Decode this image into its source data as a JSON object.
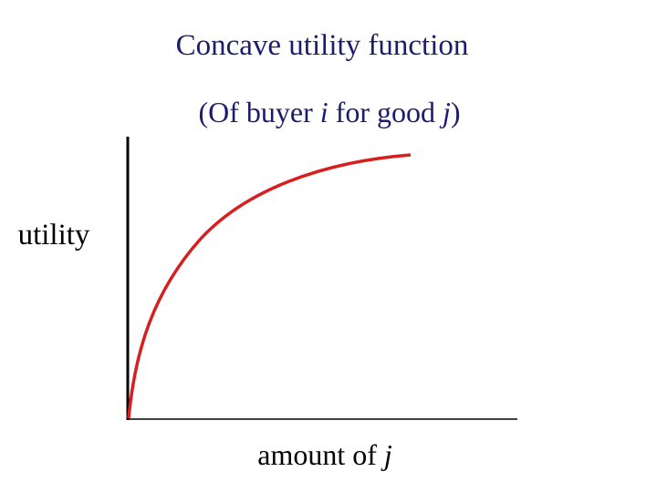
{
  "header": {
    "title": "Concave utility function",
    "subtitle": [
      "(Of buyer ",
      "i",
      " for good ",
      "j",
      ")"
    ]
  },
  "diagram": {
    "y_axis_label": "utility",
    "x_axis_label": [
      "amount of ",
      "j"
    ]
  }
}
